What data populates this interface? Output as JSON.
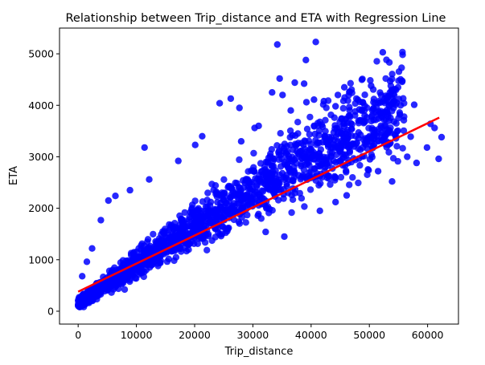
{
  "chart_data": {
    "type": "scatter",
    "title": "Relationship between Trip_distance and ETA with Regression Line",
    "xlabel": "Trip_distance",
    "ylabel": "ETA",
    "xlim": [
      -3200,
      65300
    ],
    "ylim": [
      -250,
      5500
    ],
    "xticks": [
      0,
      10000,
      20000,
      30000,
      40000,
      50000,
      60000
    ],
    "yticks": [
      0,
      1000,
      2000,
      3000,
      4000,
      5000
    ],
    "grid": false,
    "point_color": "#0000ff",
    "line_color": "#ff0000",
    "regression_line": {
      "x": [
        0,
        62000
      ],
      "y": [
        380,
        3760
      ]
    },
    "outliers": [
      {
        "x": 34200,
        "y": 5180
      },
      {
        "x": 40800,
        "y": 5230
      },
      {
        "x": 52300,
        "y": 5030
      },
      {
        "x": 39100,
        "y": 4880
      },
      {
        "x": 34600,
        "y": 4520
      },
      {
        "x": 37200,
        "y": 4440
      },
      {
        "x": 45700,
        "y": 4350
      },
      {
        "x": 50300,
        "y": 4380
      },
      {
        "x": 33300,
        "y": 4250
      },
      {
        "x": 35100,
        "y": 4200
      },
      {
        "x": 39200,
        "y": 4060
      },
      {
        "x": 40500,
        "y": 4110
      },
      {
        "x": 42200,
        "y": 4080
      },
      {
        "x": 26200,
        "y": 4130
      },
      {
        "x": 24300,
        "y": 4040
      },
      {
        "x": 27700,
        "y": 3950
      },
      {
        "x": 36500,
        "y": 3900
      },
      {
        "x": 44200,
        "y": 3980
      },
      {
        "x": 48300,
        "y": 3920
      },
      {
        "x": 57700,
        "y": 4010
      },
      {
        "x": 46800,
        "y": 3650
      },
      {
        "x": 49200,
        "y": 3800
      },
      {
        "x": 53400,
        "y": 3700
      },
      {
        "x": 57100,
        "y": 3390
      },
      {
        "x": 60500,
        "y": 3640
      },
      {
        "x": 61200,
        "y": 3560
      },
      {
        "x": 62400,
        "y": 3380
      },
      {
        "x": 61900,
        "y": 2960
      },
      {
        "x": 59900,
        "y": 3180
      },
      {
        "x": 56500,
        "y": 3000
      },
      {
        "x": 58100,
        "y": 2880
      },
      {
        "x": 53900,
        "y": 2520
      },
      {
        "x": 51500,
        "y": 2720
      },
      {
        "x": 50100,
        "y": 2950
      },
      {
        "x": 31000,
        "y": 3600
      },
      {
        "x": 30300,
        "y": 3560
      },
      {
        "x": 21300,
        "y": 3400
      },
      {
        "x": 20100,
        "y": 3230
      },
      {
        "x": 11400,
        "y": 3180
      },
      {
        "x": 17200,
        "y": 2920
      },
      {
        "x": 12200,
        "y": 2560
      },
      {
        "x": 8900,
        "y": 2350
      },
      {
        "x": 6400,
        "y": 2240
      },
      {
        "x": 5200,
        "y": 2150
      },
      {
        "x": 3900,
        "y": 1770
      },
      {
        "x": 2400,
        "y": 1220
      },
      {
        "x": 1500,
        "y": 960
      },
      {
        "x": 700,
        "y": 680
      },
      {
        "x": 35400,
        "y": 1450
      },
      {
        "x": 32200,
        "y": 1540
      },
      {
        "x": 41500,
        "y": 1950
      },
      {
        "x": 44200,
        "y": 2120
      },
      {
        "x": 46100,
        "y": 2250
      },
      {
        "x": 28000,
        "y": 3300
      },
      {
        "x": 44600,
        "y": 4200
      },
      {
        "x": 47400,
        "y": 3200
      },
      {
        "x": 38800,
        "y": 4420
      }
    ]
  }
}
